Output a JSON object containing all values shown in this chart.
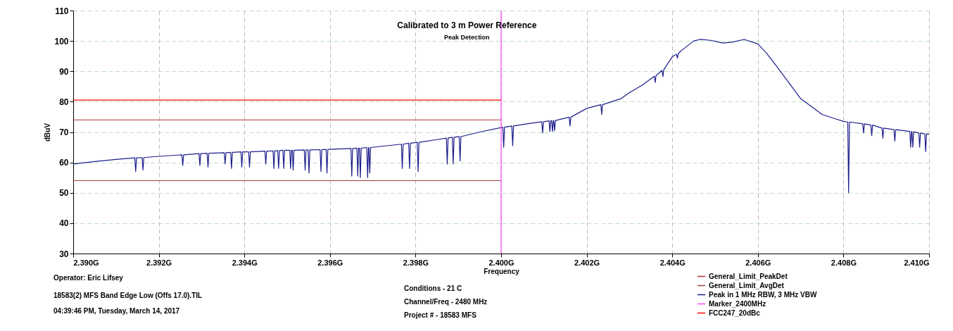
{
  "chart_data": {
    "type": "line",
    "title": "Calibrated to 3 m Power Reference",
    "subtitle": "Peak Detection",
    "xlabel": "Frequency",
    "ylabel": "dBuV",
    "xlim": [
      2.39,
      2.41
    ],
    "xticks": [
      {
        "value": 2.39,
        "label": "2.390G"
      },
      {
        "value": 2.392,
        "label": "2.392G"
      },
      {
        "value": 2.394,
        "label": "2.394G"
      },
      {
        "value": 2.396,
        "label": "2.396G"
      },
      {
        "value": 2.398,
        "label": "2.398G"
      },
      {
        "value": 2.4,
        "label": "2.400G"
      },
      {
        "value": 2.402,
        "label": "2.402G"
      },
      {
        "value": 2.404,
        "label": "2.404G"
      },
      {
        "value": 2.406,
        "label": "2.406G"
      },
      {
        "value": 2.408,
        "label": "2.408G"
      },
      {
        "value": 2.41,
        "label": "2.410G"
      }
    ],
    "ylim": [
      30,
      110
    ],
    "yticks": [
      30,
      40,
      50,
      60,
      70,
      80,
      90,
      100,
      110
    ],
    "grid": true,
    "legend": "bottom right",
    "series": [
      {
        "name": "General_Limit_PeakDet",
        "color": "#b03030",
        "x": [
          2.39,
          2.4
        ],
        "values": [
          74,
          74
        ]
      },
      {
        "name": "General_Limit_AvgDet",
        "color": "#a04040",
        "x": [
          2.39,
          2.4
        ],
        "values": [
          54,
          54
        ]
      },
      {
        "name": "Peak in 1 MHz RBW, 3 MHz VBW",
        "color": "#1c1c8c",
        "x": [
          2.39,
          2.3905,
          2.391,
          2.39144,
          2.39146,
          2.39148,
          2.39161,
          2.39163,
          2.39165,
          2.392,
          2.39254,
          2.39256,
          2.39258,
          2.39294,
          2.39296,
          2.39298,
          2.39313,
          2.39315,
          2.39317,
          2.39353,
          2.39355,
          2.39357,
          2.39368,
          2.3937,
          2.39372,
          2.39392,
          2.39394,
          2.39396,
          2.3941,
          2.39412,
          2.39414,
          2.39448,
          2.3945,
          2.39452,
          2.39467,
          2.39469,
          2.39471,
          2.39478,
          2.3948,
          2.39482,
          2.3949,
          2.39492,
          2.39494,
          2.39506,
          2.39508,
          2.3951,
          2.39512,
          2.39514,
          2.39516,
          2.3954,
          2.39542,
          2.39544,
          2.39549,
          2.39551,
          2.39553,
          2.39577,
          2.39579,
          2.39581,
          2.39591,
          2.39593,
          2.39595,
          2.39649,
          2.39651,
          2.39653,
          2.39663,
          2.39665,
          2.39667,
          2.39669,
          2.39671,
          2.39673,
          2.39686,
          2.39688,
          2.3969,
          2.39691,
          2.39693,
          2.39695,
          2.3972,
          2.39767,
          2.39769,
          2.39771,
          2.39784,
          2.39786,
          2.39788,
          2.39804,
          2.39806,
          2.39808,
          2.3985,
          2.39872,
          2.39874,
          2.39876,
          2.39886,
          2.39888,
          2.3989,
          2.39902,
          2.39904,
          2.39906,
          2.3995,
          2.40004,
          2.40006,
          2.40008,
          2.40025,
          2.40027,
          2.40029,
          2.4006,
          2.40095,
          2.40097,
          2.40099,
          2.40112,
          2.40114,
          2.40116,
          2.40118,
          2.4012,
          2.40122,
          2.40123,
          2.40125,
          2.40127,
          2.40159,
          2.40161,
          2.40163,
          2.402,
          2.40233,
          2.40235,
          2.40237,
          2.4028,
          2.403,
          2.4033,
          2.40358,
          2.4036,
          2.40362,
          2.40376,
          2.40378,
          2.4038,
          2.404,
          2.4041,
          2.40412,
          2.40414,
          2.4042,
          2.4045,
          2.40465,
          2.4049,
          2.40518,
          2.4054,
          2.40568,
          2.406,
          2.4062,
          2.4065,
          2.407,
          2.4075,
          2.4078,
          2.408,
          2.4081,
          2.40812,
          2.40814,
          2.40845,
          2.40847,
          2.40849,
          2.40864,
          2.40866,
          2.40868,
          2.4089,
          2.40892,
          2.40894,
          2.40918,
          2.4092,
          2.40922,
          2.40955,
          2.40957,
          2.40959,
          2.4096,
          2.40962,
          2.40964,
          2.40976,
          2.40978,
          2.4098,
          2.4099,
          2.40992,
          2.40994,
          2.41
        ],
        "values": [
          59.5,
          60.3,
          61,
          61.5,
          57,
          61.5,
          61.6,
          57.5,
          61.6,
          62,
          62.5,
          59,
          62.5,
          62.9,
          59,
          62.9,
          63,
          58.5,
          63,
          63.2,
          59.5,
          63.2,
          63.3,
          58,
          63.3,
          63.5,
          58.5,
          63.5,
          63.5,
          58.5,
          63.5,
          63.7,
          59.5,
          63.7,
          63.8,
          58,
          63.8,
          63.9,
          58,
          63.9,
          64,
          58,
          64,
          64,
          58,
          64,
          64,
          57.5,
          64,
          64.1,
          57.5,
          64.1,
          64.1,
          56.5,
          64.1,
          64.2,
          57,
          64.2,
          64.3,
          56.5,
          64.3,
          64.6,
          55.5,
          64.6,
          64.7,
          55.5,
          64.7,
          64.7,
          55,
          64.7,
          64.9,
          55,
          64.9,
          64.9,
          56.5,
          64.9,
          65.3,
          66,
          58,
          66,
          66.3,
          58,
          66.3,
          66.6,
          57,
          66.6,
          67.5,
          68,
          59.5,
          68,
          68.3,
          59.5,
          68.3,
          68.5,
          60.5,
          68.5,
          70,
          71.6,
          65,
          71.6,
          72,
          65.5,
          72,
          72.7,
          73.4,
          69.7,
          73.4,
          73.7,
          70.2,
          73.7,
          73.8,
          70.2,
          73.8,
          73.8,
          70.5,
          73.8,
          74.9,
          72,
          74.9,
          77.8,
          79,
          75.8,
          79,
          81,
          83,
          85.5,
          88.4,
          86.3,
          88.6,
          90.3,
          88.2,
          90.5,
          94.8,
          95.6,
          94.3,
          95.8,
          96.7,
          100,
          100.5,
          100.2,
          99.3,
          99.6,
          100.5,
          99,
          96,
          90.5,
          81,
          75.8,
          74.4,
          73.5,
          73.3,
          50,
          73.3,
          72.7,
          69.7,
          72.7,
          72.3,
          68.8,
          72.3,
          71.3,
          68,
          71.3,
          70.8,
          67,
          70.8,
          70.2,
          65,
          70.2,
          70.1,
          65,
          70.1,
          69.7,
          65,
          69.7,
          69.4,
          63.6,
          69.4,
          69.2
        ]
      },
      {
        "name": "Marker_2400MHz",
        "color": "#ff44ff",
        "x": [
          2.4,
          2.4
        ],
        "values": [
          30,
          110
        ]
      },
      {
        "name": "FCC247_20dBc",
        "color": "#ff0000",
        "x": [
          2.39,
          2.4
        ],
        "values": [
          80.5,
          80.5
        ]
      }
    ],
    "annotations": [
      "Operator: Eric Lifsey",
      "18583(2) MFS Band Edge Low (Offs 17.0).TIL",
      "04:39:46 PM, Tuesday, March 14, 2017",
      "Conditions - 21 C",
      "Channel/Freq - 2480 MHz",
      "Project # - 18583 MFS"
    ]
  }
}
